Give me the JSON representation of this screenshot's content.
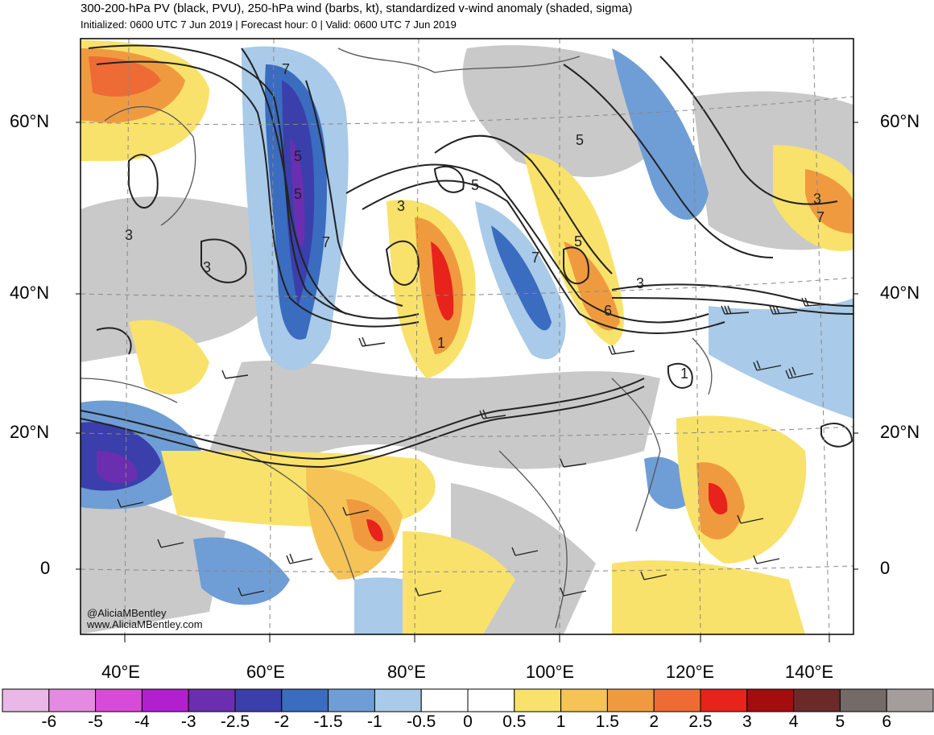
{
  "header": {
    "title": "300-200-hPa PV (black, PVU), 250-hPa wind (barbs, kt), standardized v-wind anomaly (shaded, sigma)",
    "subtitle": "Initialized: 0600 UTC 7 Jun 2019 | Forecast hour: 0 | Valid: 0600 UTC 7 Jun 2019"
  },
  "lat_labels": [
    "60°N",
    "40°N",
    "20°N",
    "0"
  ],
  "lon_labels": [
    "40°E",
    "60°E",
    "80°E",
    "100°E",
    "120°E",
    "140°E"
  ],
  "contour_labels": [
    "7",
    "5",
    "5",
    "3",
    "3",
    "3",
    "5",
    "5",
    "3",
    "5",
    "7",
    "7",
    "1",
    "1",
    "6",
    "3",
    "7"
  ],
  "credit": {
    "handle": "@AliciaMBentley",
    "site": "www.AliciaMBentley.com"
  },
  "colorbar": {
    "labels": [
      "-6",
      "-5",
      "-4",
      "-3",
      "-2.5",
      "-2",
      "-1.5",
      "-1",
      "-0.5",
      "0",
      "0.5",
      "1",
      "1.5",
      "2",
      "2.5",
      "3",
      "4",
      "5",
      "6"
    ],
    "colors": [
      "#e9b8e6",
      "#e58ae2",
      "#d84bd8",
      "#b21fcf",
      "#6c2eb0",
      "#3b3fab",
      "#3a6cbf",
      "#6f9ed6",
      "#a9cae8",
      "#ffffff",
      "#ffffff",
      "#f9e26b",
      "#f5c356",
      "#f09a40",
      "#ee6b35",
      "#e8231b",
      "#a30d0d",
      "#6b2a28",
      "#746a68",
      "#a59c9c"
    ]
  },
  "palette": {
    "ocean": "#ffffff",
    "land_gray": "#c9c9c9",
    "contour": "#222222",
    "coast": "#555555"
  }
}
